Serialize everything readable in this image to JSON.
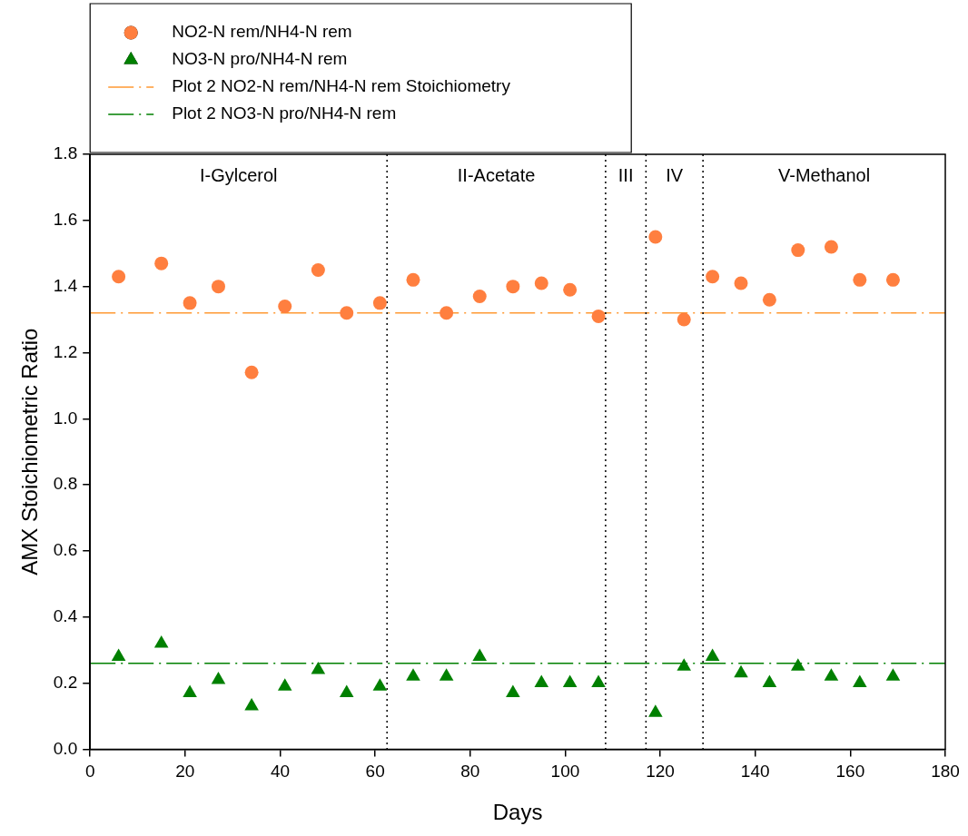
{
  "chart_data": {
    "type": "scatter",
    "xlabel": "Days",
    "ylabel": "AMX Stoichiometric Ratio",
    "x": [
      6,
      15,
      21,
      27,
      34,
      41,
      48,
      54,
      61,
      68,
      75,
      82,
      89,
      95,
      101,
      107,
      119,
      125,
      131,
      137,
      143,
      149,
      156,
      162,
      169
    ],
    "series": [
      {
        "name": "NO2-N rem/NH4-N rem",
        "color": "#ff7f3f",
        "marker": "circle",
        "values": [
          1.43,
          1.47,
          1.35,
          1.4,
          1.14,
          1.34,
          1.45,
          1.32,
          1.35,
          1.42,
          1.32,
          1.37,
          1.4,
          1.41,
          1.39,
          1.31,
          1.55,
          1.3,
          1.43,
          1.41,
          1.36,
          1.51,
          1.52,
          1.42,
          1.42
        ]
      },
      {
        "name": "NO3-N pro/NH4-N rem",
        "color": "#008000",
        "marker": "triangle",
        "values": [
          0.28,
          0.32,
          0.17,
          0.21,
          0.13,
          0.19,
          0.24,
          0.17,
          0.19,
          0.22,
          0.22,
          0.28,
          0.17,
          0.2,
          0.2,
          0.2,
          0.11,
          0.25,
          0.28,
          0.23,
          0.2,
          0.25,
          0.22,
          0.2,
          0.22
        ]
      }
    ],
    "xlim": [
      0,
      180
    ],
    "xticks": [
      0,
      20,
      40,
      60,
      80,
      100,
      120,
      140,
      160,
      180
    ],
    "ylim": [
      0,
      1.8
    ],
    "yticks": [
      {
        "value": 0,
        "label": "0.0"
      },
      0.2,
      0.4,
      0.6,
      0.8,
      {
        "value": 1,
        "label": "1.0"
      },
      1.2,
      1.4,
      1.6,
      1.8
    ],
    "ref_lines": [
      {
        "axis": "y",
        "value": 1.32,
        "label": "Plot 2 NO2-N rem/NH4-N rem Stoichiometry",
        "color": "#ff9933",
        "line_style": "dashed"
      },
      {
        "axis": "y",
        "value": 0.26,
        "label": "Plot 2 NO3-N pro/NH4-N rem",
        "color": "#008000",
        "line_style": "dashed"
      },
      {
        "axis": "x",
        "value": 62.5,
        "color": "#000000",
        "line_style": "dotted"
      },
      {
        "axis": "x",
        "value": 108.5,
        "color": "#000000",
        "line_style": "dotted"
      },
      {
        "axis": "x",
        "value": 117,
        "color": "#000000",
        "line_style": "dotted"
      },
      {
        "axis": "x",
        "value": 129,
        "color": "#000000",
        "line_style": "dotted"
      }
    ],
    "annotations": [
      "I-Gylcerol",
      "II-Acetate",
      "III",
      "IV",
      "V-Methanol"
    ],
    "grid": false,
    "legend": "top left"
  }
}
